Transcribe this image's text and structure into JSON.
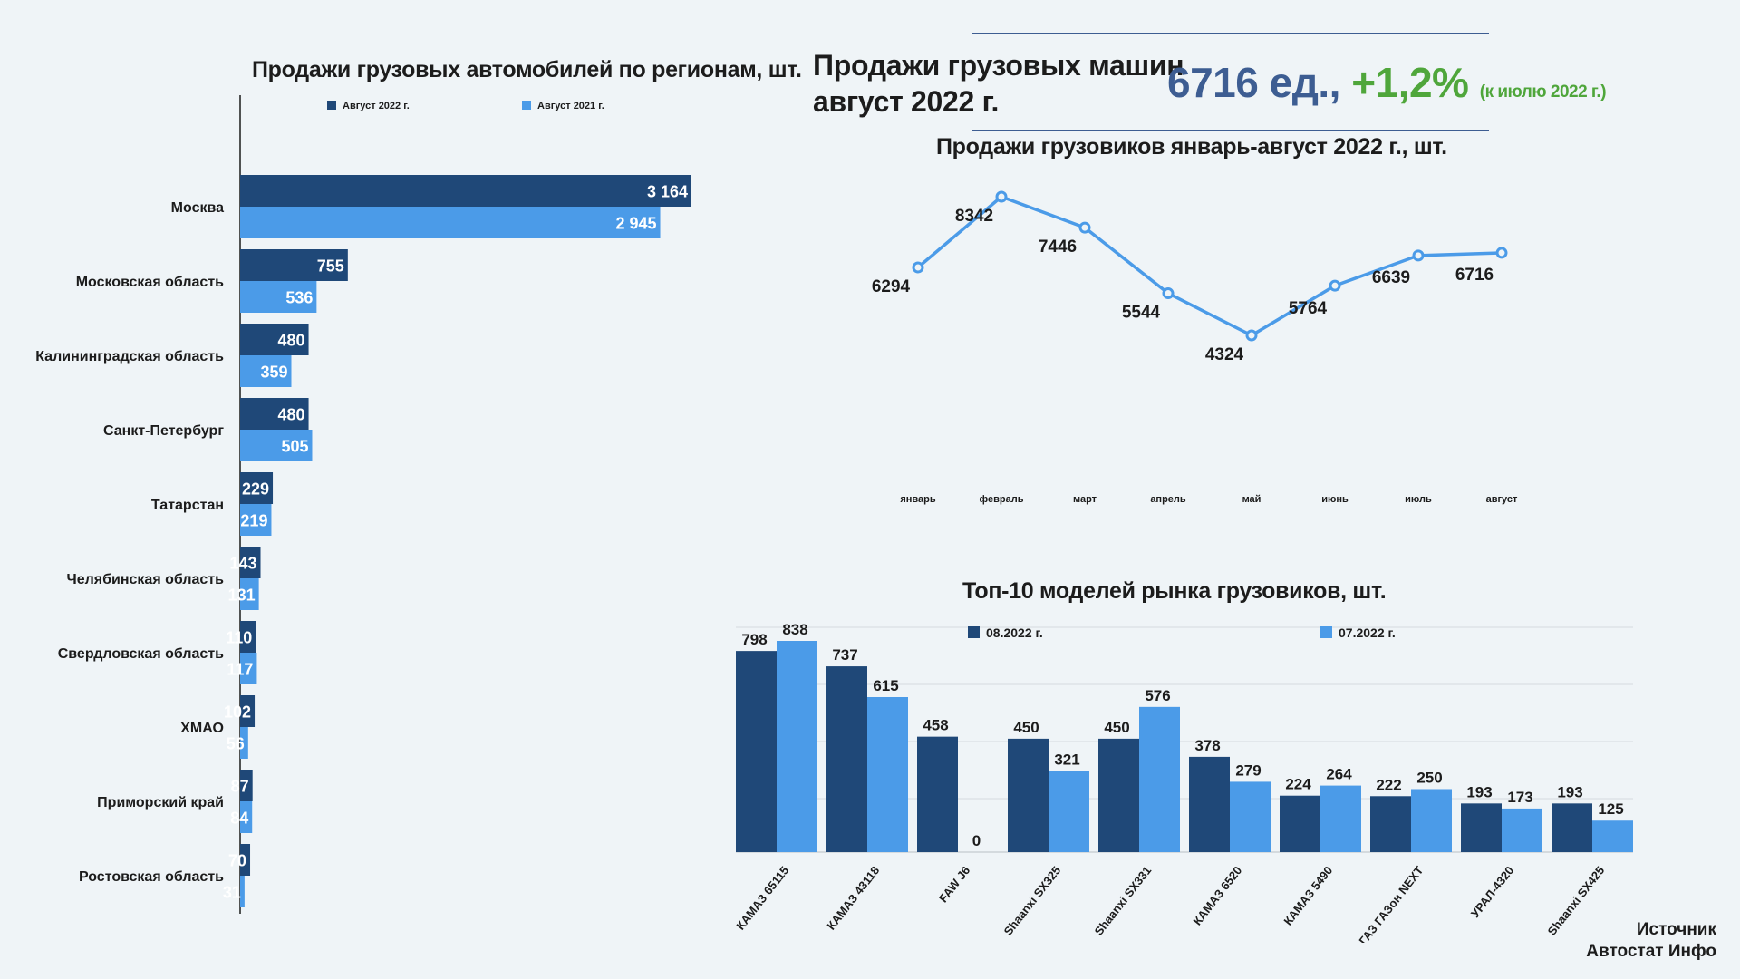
{
  "header": {
    "title_line1": "Продажи грузовых машин",
    "title_line2": "август 2022 г.",
    "total": "6716 ед.,",
    "change": "+1,2%",
    "change_note": "(к июлю 2022 г.)"
  },
  "source": {
    "line1": "Источник",
    "line2": "Автостат Инфо"
  },
  "colors": {
    "dark": "#1f4878",
    "light": "#4b9be8",
    "line": "#4b9be8",
    "accent_blue": "#3d5d92",
    "accent_green": "#4fa63b"
  },
  "chart_data": [
    {
      "id": "regions",
      "type": "bar",
      "orientation": "horizontal",
      "title": "Продажи грузовых автомобилей по регионам, шт.",
      "categories": [
        "Москва",
        "Московская область",
        "Калининградская область",
        "Санкт-Петербург",
        "Татарстан",
        "Челябинская область",
        "Свердловская область",
        "ХМАО",
        "Приморский край",
        "Ростовская область"
      ],
      "series": [
        {
          "name": "Август 2022 г.",
          "values": [
            3164,
            755,
            480,
            480,
            229,
            143,
            110,
            102,
            87,
            70
          ],
          "labels": [
            "3 164",
            "755",
            "480",
            "480",
            "229",
            "143",
            "110",
            "102",
            "87",
            "70"
          ]
        },
        {
          "name": "Август 2021 г.",
          "values": [
            2945,
            536,
            359,
            505,
            219,
            131,
            117,
            56,
            84,
            31
          ],
          "labels": [
            "2 945",
            "536",
            "359",
            "505",
            "219",
            "131",
            "117",
            "56",
            "84",
            "31"
          ]
        }
      ],
      "legend": "top"
    },
    {
      "id": "monthly",
      "type": "line",
      "title": "Продажи грузовиков январь-август 2022 г., шт.",
      "categories": [
        "январь",
        "февраль",
        "март",
        "апрель",
        "май",
        "июнь",
        "июль",
        "август"
      ],
      "values": [
        6294,
        8342,
        7446,
        5544,
        4324,
        5764,
        6639,
        6716
      ]
    },
    {
      "id": "top10",
      "type": "bar",
      "orientation": "vertical",
      "title": "Топ-10 моделей рынка грузовиков, шт.",
      "categories": [
        "КАМАЗ 65115",
        "КАМАЗ 43118",
        "FAW J6",
        "Shaanxi SX325",
        "Shaanxi SX331",
        "КАМАЗ 6520",
        "КАМАЗ 5490",
        "ГАЗ ГАЗон NEXT",
        "УРАЛ-4320",
        "Shaanxi SX425"
      ],
      "series": [
        {
          "name": "08.2022 г.",
          "values": [
            798,
            737,
            458,
            450,
            450,
            378,
            224,
            222,
            193,
            193
          ]
        },
        {
          "name": "07.2022 г.",
          "values": [
            838,
            615,
            0,
            321,
            576,
            279,
            264,
            250,
            173,
            125
          ]
        }
      ],
      "legend": "top",
      "grid": true
    }
  ]
}
